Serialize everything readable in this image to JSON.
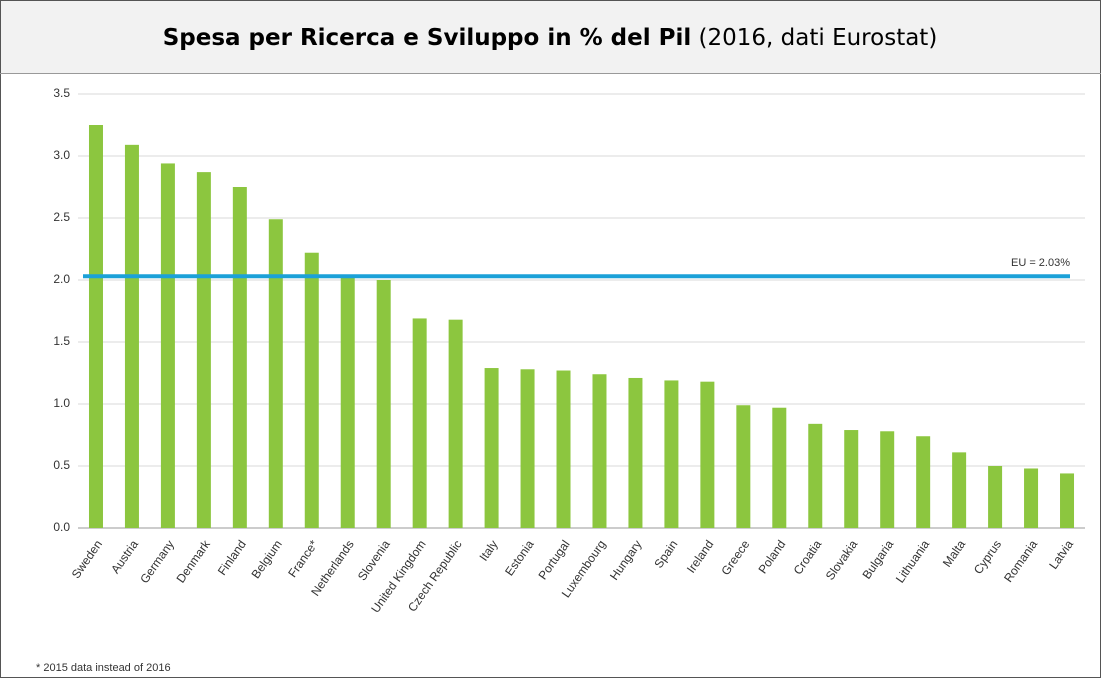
{
  "chart_data": {
    "type": "bar",
    "title": "Spesa per Ricerca e Sviluppo in % del Pil",
    "subtitle": "(2016, dati Eurostat)",
    "categories": [
      "Sweden",
      "Austria",
      "Germany",
      "Denmark",
      "Finland",
      "Belgium",
      "France*",
      "Netherlands",
      "Slovenia",
      "United Kingdom",
      "Czech Republic",
      "Italy",
      "Estonia",
      "Portugal",
      "Luxembourg",
      "Hungary",
      "Spain",
      "Ireland",
      "Greece",
      "Poland",
      "Croatia",
      "Slovakia",
      "Bulgaria",
      "Lithuania",
      "Malta",
      "Cyprus",
      "Romania",
      "Latvia"
    ],
    "values": [
      3.25,
      3.09,
      2.94,
      2.87,
      2.75,
      2.49,
      2.22,
      2.03,
      2.0,
      1.69,
      1.68,
      1.29,
      1.28,
      1.27,
      1.24,
      1.21,
      1.19,
      1.18,
      0.99,
      0.97,
      0.84,
      0.79,
      0.78,
      0.74,
      0.61,
      0.5,
      0.48,
      0.44
    ],
    "color": "#8cc63f",
    "ylim": [
      0,
      3.5
    ],
    "yticks": [
      {
        "value": 0,
        "label": "0.0"
      },
      0.5,
      {
        "value": 1,
        "label": "1.0"
      },
      1.5,
      {
        "value": 2,
        "label": "2.0"
      },
      2.5,
      {
        "value": 3,
        "label": "3.0"
      },
      3.5
    ],
    "grid": true,
    "reference_lines": [
      {
        "value": 2.03,
        "label": "EU = 2.03%",
        "color": "#1ba1d8"
      }
    ],
    "note": "* 2015 data instead of 2016"
  }
}
